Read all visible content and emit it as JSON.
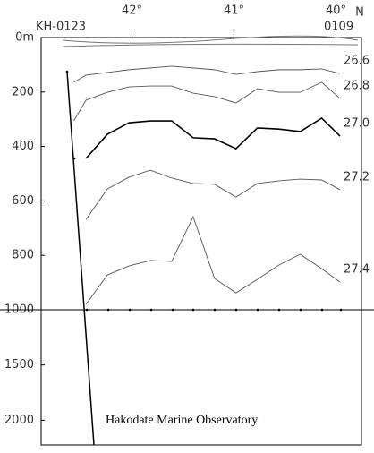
{
  "chart_data": [
    {
      "type": "line",
      "cruise_label": "KH-0123",
      "end_label": "0109",
      "x_unit_label": "N",
      "xlim": [
        42.89,
        39.75
      ],
      "xticks": [
        {
          "value": 42,
          "label": "42°"
        },
        {
          "value": 41,
          "label": "41°"
        },
        {
          "value": 40,
          "label": "40°"
        }
      ],
      "ylim": [
        0,
        1000
      ],
      "y_inverted": true,
      "yticks": [
        {
          "value": 0,
          "label": "0m"
        },
        200,
        400,
        600,
        800,
        1000
      ],
      "series": [
        {
          "name": "26.6",
          "color": "#555",
          "x": [
            42.57,
            42.45,
            42.03,
            41.61,
            41.19,
            40.98,
            40.77,
            40.56,
            40.35,
            40.14,
            39.96
          ],
          "values": [
            164,
            138,
            118,
            105,
            118,
            135,
            125,
            118,
            118,
            115,
            132
          ]
        },
        {
          "name": "26.8",
          "color": "#555",
          "x": [
            42.57,
            42.45,
            42.24,
            42.03,
            41.82,
            41.61,
            41.4,
            41.19,
            40.98,
            40.77,
            40.56,
            40.35,
            40.14,
            39.96
          ],
          "values": [
            306,
            230,
            201,
            181,
            178,
            178,
            204,
            217,
            240,
            188,
            201,
            201,
            164,
            224
          ]
        },
        {
          "name": "27.0",
          "color": "#000",
          "bold": true,
          "x": [
            42.45,
            42.24,
            42.03,
            41.82,
            41.61,
            41.4,
            41.19,
            40.98,
            40.77,
            40.56,
            40.35,
            40.14,
            39.96
          ],
          "values": [
            444,
            355,
            313,
            306,
            306,
            368,
            372,
            408,
            332,
            336,
            345,
            296,
            362
          ]
        },
        {
          "name": "27.2",
          "color": "#555",
          "x": [
            42.45,
            42.24,
            42.03,
            41.82,
            41.61,
            41.4,
            41.19,
            40.98,
            40.77,
            40.56,
            40.35,
            40.14,
            39.96
          ],
          "values": [
            668,
            556,
            513,
            487,
            516,
            536,
            539,
            586,
            536,
            526,
            520,
            523,
            559
          ]
        },
        {
          "name": "27.4",
          "color": "#555",
          "x": [
            42.45,
            42.24,
            42.03,
            41.82,
            41.61,
            41.4,
            41.19,
            40.98,
            40.77,
            40.56,
            40.35,
            40.14,
            39.96
          ],
          "values": [
            980,
            872,
            839,
            819,
            822,
            658,
            885,
            938,
            888,
            836,
            796,
            849,
            898
          ]
        }
      ]
    },
    {
      "type": "line",
      "ylim": [
        1000,
        2200
      ],
      "y_inverted": true,
      "yticks": [
        1500,
        2000
      ],
      "annotation": "Hakodate Marine Observatory"
    }
  ]
}
